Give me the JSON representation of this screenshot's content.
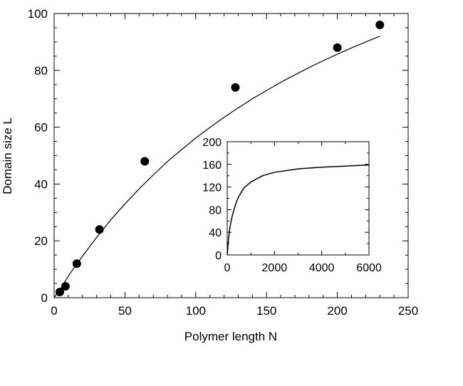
{
  "chart_data": [
    {
      "type": "scatter",
      "title": "",
      "xlabel": "Polymer length N",
      "ylabel": "Domain size L",
      "xlim": [
        0,
        250
      ],
      "ylim": [
        0,
        100
      ],
      "x_ticks": [
        0,
        50,
        100,
        150,
        200,
        250
      ],
      "y_ticks": [
        0,
        20,
        40,
        60,
        80,
        100
      ],
      "grid": false,
      "series": [
        {
          "kind": "points",
          "marker": "filled-circle",
          "color": "#000000",
          "x": [
            4,
            8,
            16,
            32,
            64,
            128,
            200,
            230
          ],
          "y": [
            2,
            4,
            12,
            24,
            48,
            74,
            88,
            96
          ]
        },
        {
          "kind": "line",
          "color": "#000000",
          "x": [
            0,
            5,
            10,
            15,
            20,
            30,
            40,
            50,
            60,
            70,
            80,
            90,
            100,
            110,
            120,
            130,
            140,
            150,
            160,
            170,
            180,
            190,
            200,
            210,
            220,
            230
          ],
          "y": [
            0,
            3.5,
            7.6,
            11.2,
            14.6,
            21.2,
            27.4,
            33.0,
            38.3,
            43.2,
            47.9,
            52.1,
            56.2,
            59.9,
            63.5,
            66.8,
            70.0,
            72.9,
            75.8,
            78.4,
            81.0,
            83.4,
            85.7,
            87.9,
            90.0,
            92.0
          ]
        }
      ]
    },
    {
      "type": "line",
      "title": "",
      "xlabel": "",
      "ylabel": "",
      "xlim": [
        0,
        6000
      ],
      "ylim": [
        0,
        200
      ],
      "x_ticks": [
        0,
        2000,
        4000,
        6000
      ],
      "y_ticks": [
        0,
        40,
        80,
        120,
        160,
        200
      ],
      "grid": false,
      "series": [
        {
          "color": "#000000",
          "x": [
            0,
            25,
            50,
            100,
            150,
            200,
            300,
            400,
            500,
            700,
            1000,
            1500,
            2000,
            3000,
            4000,
            5000,
            6000
          ],
          "y": [
            0,
            14,
            26,
            44,
            57,
            67,
            82,
            95,
            104,
            118,
            129,
            140,
            146,
            152,
            155,
            157,
            159
          ]
        }
      ]
    }
  ]
}
